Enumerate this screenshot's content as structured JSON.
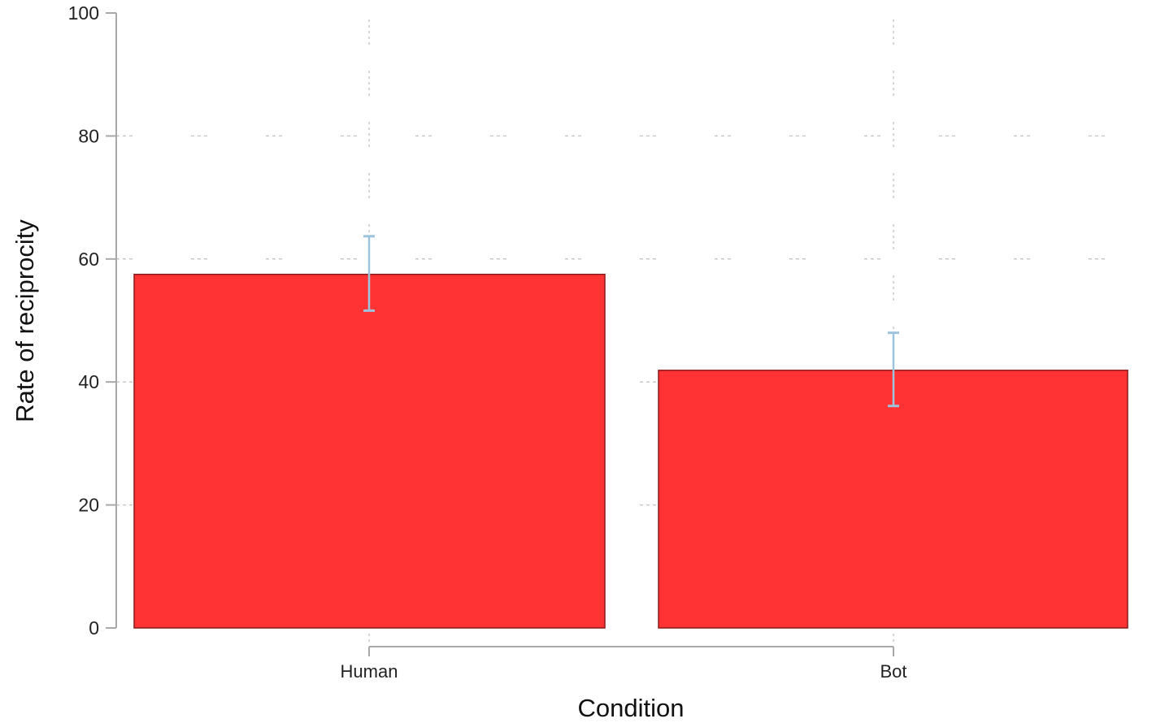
{
  "chart_data": {
    "type": "bar",
    "title": "",
    "xlabel": "Condition",
    "ylabel": "Rate of reciprocity",
    "categories": [
      "Human",
      "Bot"
    ],
    "values": [
      57.5,
      41.9
    ],
    "error_bars": [
      {
        "lower": 51.6,
        "upper": 63.7
      },
      {
        "lower": 36.1,
        "upper": 48.0
      }
    ],
    "ylim": [
      0,
      100
    ],
    "yticks": [
      0,
      20,
      40,
      60,
      80,
      100
    ],
    "grid": true,
    "legend": null,
    "colors": {
      "bar_fill": "#ff3333",
      "bar_edge": "#8b1a1a",
      "error_bar": "#9ec3dd",
      "axis": "#a8a8a8",
      "grid": "#c8c8c8"
    }
  }
}
